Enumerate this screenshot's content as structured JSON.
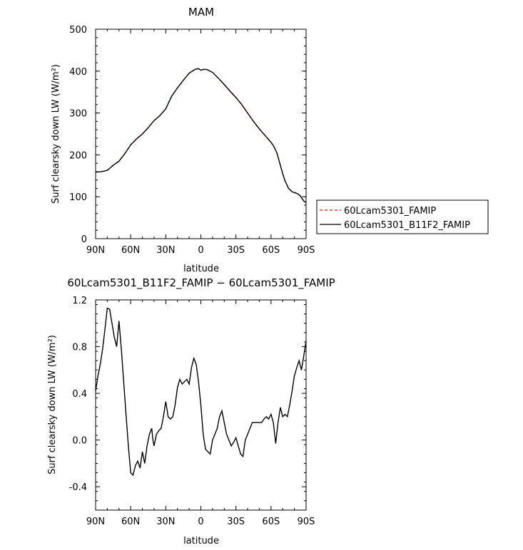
{
  "chart_data": [
    {
      "type": "line",
      "title": "MAM",
      "xlabel": "latitude",
      "ylabel": "Surf clearsky down LW (W/m²)",
      "xlim": [
        90,
        -90
      ],
      "ylim": [
        0,
        500
      ],
      "xticks": [
        90,
        60,
        30,
        0,
        -30,
        -60,
        -90
      ],
      "xtick_labels": [
        "90N",
        "60N",
        "30N",
        "0",
        "30S",
        "60S",
        "90S"
      ],
      "yticks": [
        0,
        100,
        200,
        300,
        400,
        500
      ],
      "ytick_labels": [
        "0",
        "100",
        "200",
        "300",
        "400",
        "500"
      ],
      "x": [
        90,
        85,
        80,
        75,
        70,
        65,
        60,
        55,
        50,
        45,
        40,
        35,
        30,
        25,
        20,
        15,
        10,
        5,
        2,
        0,
        -2,
        -5,
        -10,
        -15,
        -20,
        -25,
        -30,
        -35,
        -40,
        -45,
        -50,
        -55,
        -60,
        -62,
        -65,
        -68,
        -70,
        -72,
        -75,
        -78,
        -80,
        -83,
        -85,
        -88,
        -90
      ],
      "series": [
        {
          "name": "60Lcam5301_FAMIP",
          "color": "#ff0000",
          "dash": "dashed",
          "values": [
            159,
            160,
            163,
            175,
            185,
            203,
            224,
            238,
            250,
            265,
            282,
            294,
            310,
            340,
            360,
            378,
            395,
            404,
            406,
            402,
            404,
            404,
            397,
            383,
            368,
            352,
            337,
            320,
            300,
            280,
            262,
            246,
            230,
            222,
            205,
            175,
            155,
            138,
            120,
            112,
            110,
            107,
            102,
            90,
            86
          ]
        },
        {
          "name": "60Lcam5301_B11F2_FAMIP",
          "color": "#000000",
          "dash": "solid",
          "values": [
            159,
            160,
            163,
            175,
            185,
            203,
            224,
            238,
            250,
            265,
            282,
            294,
            310,
            340,
            360,
            378,
            395,
            404,
            406,
            402,
            404,
            404,
            397,
            383,
            368,
            352,
            337,
            320,
            300,
            280,
            262,
            246,
            230,
            222,
            205,
            175,
            155,
            138,
            120,
            112,
            110,
            107,
            102,
            90,
            86
          ]
        }
      ]
    },
    {
      "type": "line",
      "title": "60Lcam5301_B11F2_FAMIP − 60Lcam5301_FAMIP",
      "xlabel": "latitude",
      "ylabel": "Surf clearsky down LW (W/m²)",
      "xlim": [
        90,
        -90
      ],
      "ylim": [
        -0.6,
        1.2
      ],
      "xticks": [
        90,
        60,
        30,
        0,
        -30,
        -60,
        -90
      ],
      "xtick_labels": [
        "90N",
        "60N",
        "30N",
        "0",
        "30S",
        "60S",
        "90S"
      ],
      "yticks": [
        -0.4,
        0.0,
        0.4,
        0.8,
        1.2
      ],
      "ytick_labels": [
        "-0.4",
        "0.0",
        "0.4",
        "0.8",
        "1.2"
      ],
      "x": [
        90,
        88,
        86,
        84,
        82,
        80,
        78,
        76,
        74,
        72,
        70,
        68,
        66,
        64,
        62,
        60,
        58,
        56,
        54,
        52,
        50,
        48,
        46,
        44,
        42,
        41,
        40,
        38,
        36,
        34,
        32,
        30,
        28,
        26,
        24,
        22,
        20,
        18,
        16,
        14,
        12,
        10,
        8,
        6,
        4,
        2,
        0,
        -2,
        -4,
        -6,
        -8,
        -10,
        -12,
        -14,
        -16,
        -18,
        -20,
        -22,
        -24,
        -26,
        -28,
        -30,
        -32,
        -34,
        -36,
        -38,
        -40,
        -42,
        -44,
        -46,
        -48,
        -50,
        -52,
        -54,
        -56,
        -58,
        -60,
        -62,
        -64,
        -66,
        -68,
        -70,
        -72,
        -74,
        -76,
        -78,
        -80,
        -82,
        -84,
        -86,
        -88,
        -90
      ],
      "series": [
        {
          "name": "",
          "color": "#000000",
          "dash": "solid",
          "values": [
            0.42,
            0.55,
            0.65,
            0.78,
            0.95,
            1.13,
            1.12,
            1.0,
            0.88,
            0.8,
            1.02,
            0.78,
            0.5,
            0.22,
            -0.05,
            -0.28,
            -0.3,
            -0.22,
            -0.18,
            -0.24,
            -0.1,
            -0.2,
            -0.05,
            0.05,
            0.1,
            0.0,
            -0.05,
            0.05,
            0.08,
            0.1,
            0.2,
            0.33,
            0.2,
            0.18,
            0.2,
            0.3,
            0.45,
            0.52,
            0.48,
            0.5,
            0.52,
            0.48,
            0.62,
            0.7,
            0.65,
            0.5,
            0.3,
            0.05,
            -0.08,
            -0.1,
            -0.12,
            0.0,
            0.05,
            0.1,
            0.2,
            0.25,
            0.15,
            0.05,
            0.0,
            -0.05,
            -0.02,
            0.02,
            -0.05,
            -0.12,
            -0.14,
            0.0,
            0.05,
            0.1,
            0.15,
            0.15,
            0.15,
            0.15,
            0.15,
            0.18,
            0.2,
            0.18,
            0.22,
            0.15,
            -0.03,
            0.15,
            0.28,
            0.2,
            0.22,
            0.2,
            0.3,
            0.42,
            0.55,
            0.62,
            0.68,
            0.6,
            0.72,
            0.85
          ]
        }
      ]
    }
  ],
  "legend": {
    "position": "right",
    "entries": [
      {
        "label": "60Lcam5301_FAMIP",
        "color": "#ff0000",
        "dash": "dashed"
      },
      {
        "label": "60Lcam5301_B11F2_FAMIP",
        "color": "#000000",
        "dash": "solid"
      }
    ]
  }
}
